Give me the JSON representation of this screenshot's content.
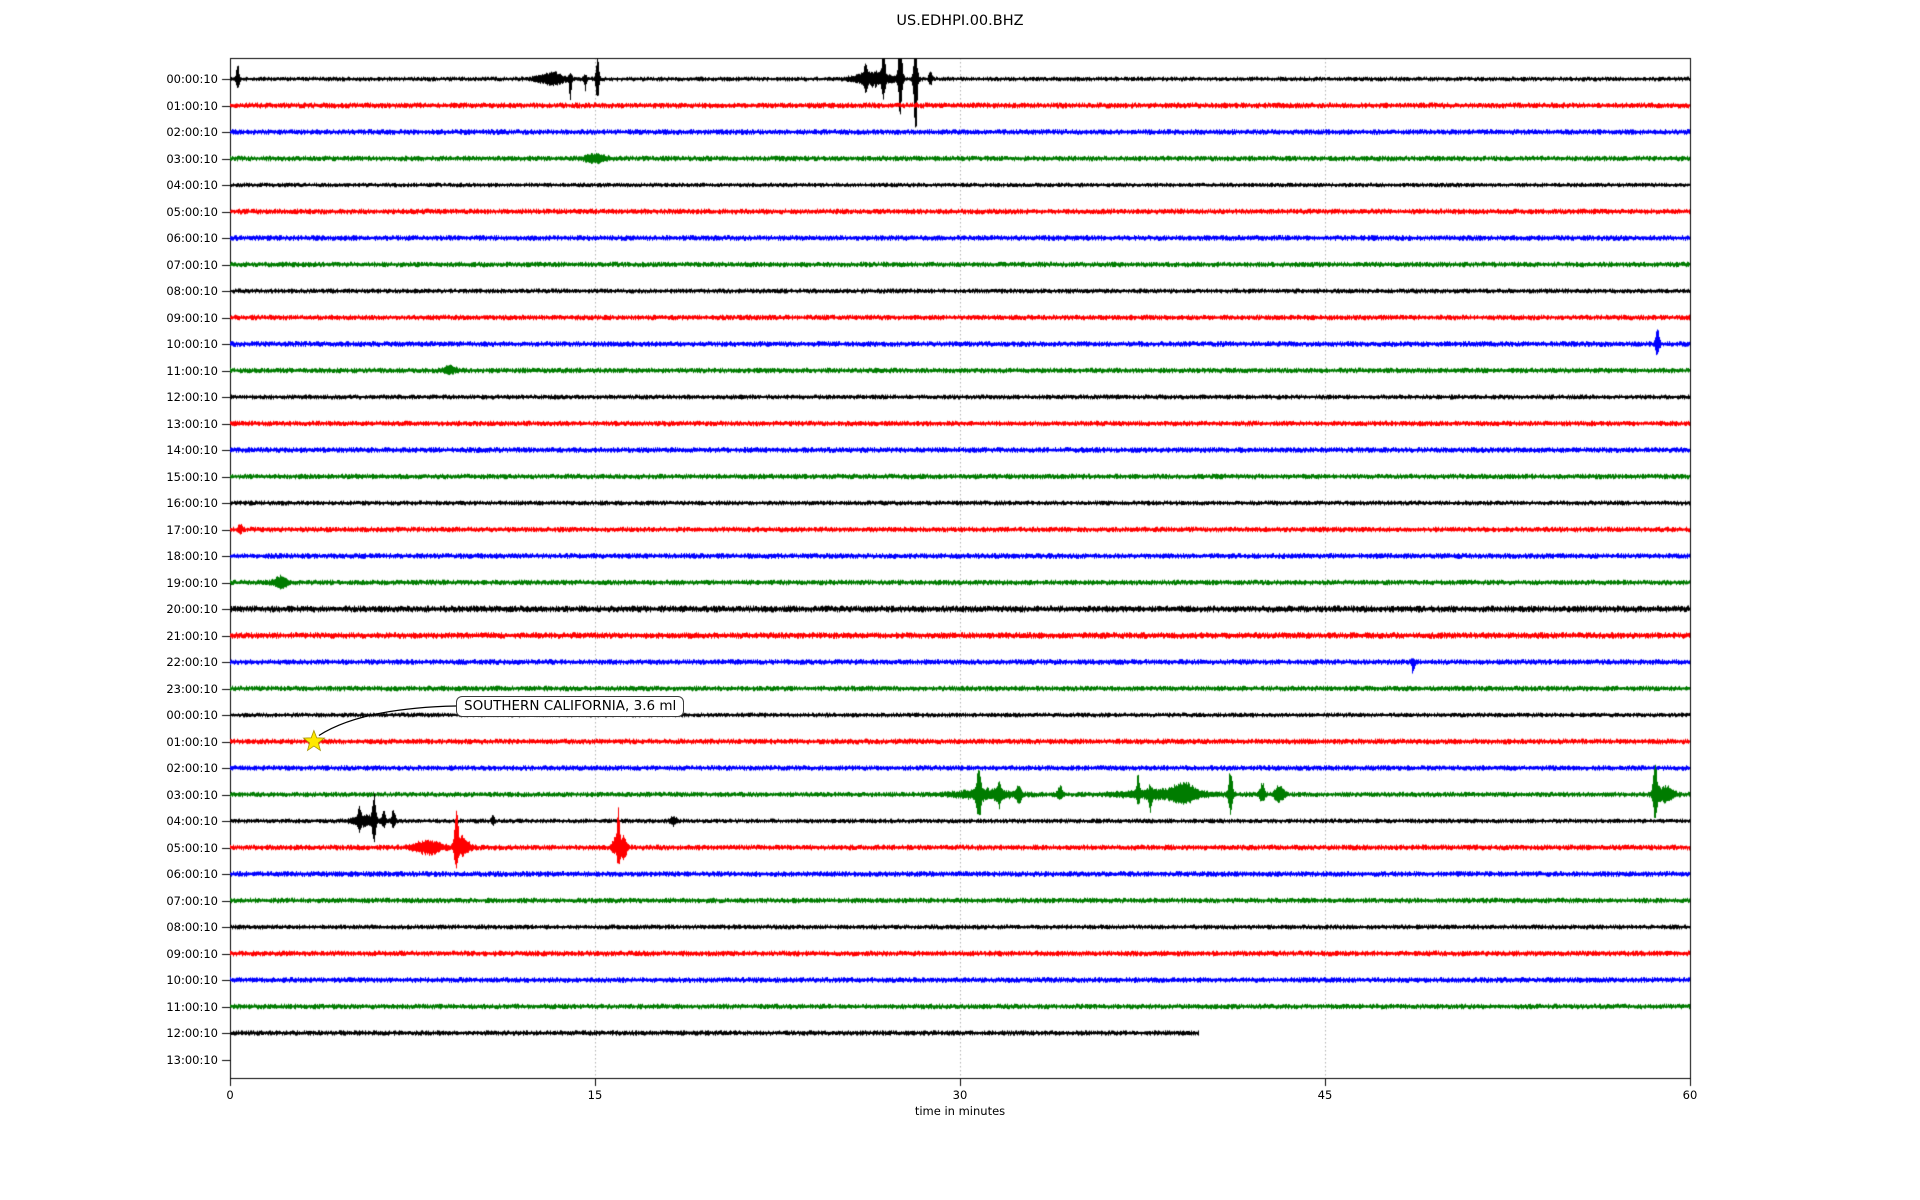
{
  "title": "US.EDHPI.00.BHZ",
  "axes": {
    "xlabel": "time in minutes",
    "x_tick_labels": [
      "0",
      "15",
      "30",
      "45",
      "60"
    ],
    "y_tick_labels_day1": [
      "00:00:10",
      "01:00:10",
      "02:00:10",
      "03:00:10",
      "04:00:10",
      "05:00:10",
      "06:00:10",
      "07:00:10",
      "08:00:10",
      "09:00:10",
      "10:00:10",
      "11:00:10",
      "12:00:10",
      "13:00:10",
      "14:00:10",
      "15:00:10",
      "16:00:10",
      "17:00:10",
      "18:00:10",
      "19:00:10",
      "20:00:10",
      "21:00:10",
      "22:00:10",
      "23:00:10"
    ],
    "y_tick_labels_day2": [
      "00:00:10",
      "01:00:10",
      "02:00:10",
      "03:00:10",
      "04:00:10",
      "05:00:10",
      "06:00:10",
      "07:00:10",
      "08:00:10",
      "09:00:10",
      "10:00:10",
      "11:00:10",
      "12:00:10",
      "13:00:10"
    ]
  },
  "annotation": {
    "text": "SOUTHERN CALIFORNIA, 3.6 ml",
    "region": "SOUTHERN CALIFORNIA",
    "magnitude": "3.6 ml",
    "row_index": 25,
    "row_label": "01:00:10",
    "minute": 3.45,
    "star_color": "#ffe900"
  },
  "colors": {
    "trace_cycle": [
      "#000000",
      "#ff0000",
      "#0000ff",
      "#007c00"
    ],
    "gridline": "#b0b0b0",
    "frame": "#000000",
    "annotation_border": "#3a3a3a",
    "star_fill": "#ffe900",
    "star_edge": "#a89400"
  },
  "chart_data": {
    "type": "line",
    "subtype": "helicorder-dayplot",
    "title": "US.EDHPI.00.BHZ",
    "station": "US.EDHPI.00.BHZ",
    "xlabel": "time in minutes",
    "xlim_minutes": [
      0,
      60
    ],
    "x_ticks_minutes": [
      0,
      15,
      30,
      45,
      60
    ],
    "minutes_per_row": 60,
    "gridlines_at_minutes": [
      15,
      30,
      45
    ],
    "color_cycle": [
      "#000000",
      "#ff0000",
      "#0000ff",
      "#007c00"
    ],
    "rows": [
      {
        "label": "00:00:10",
        "cover": 60,
        "base": 2.5,
        "events": [
          {
            "m": 0.3,
            "up": 16,
            "down": 12,
            "w": 0.05
          },
          {
            "m": 13.2,
            "up": 6,
            "down": 6,
            "w": 0.4
          },
          {
            "m": 13.97,
            "up": 5,
            "down": 20,
            "w": 0.04
          },
          {
            "m": 14.59,
            "up": 4,
            "down": 11,
            "w": 0.04
          },
          {
            "m": 15.08,
            "up": 26,
            "down": 26,
            "w": 0.05
          },
          {
            "m": 26.4,
            "up": 7,
            "down": 7,
            "w": 0.55
          },
          {
            "m": 26.1,
            "up": 13,
            "down": 9,
            "w": 0.05
          },
          {
            "m": 26.84,
            "up": 34,
            "down": 18,
            "w": 0.05
          },
          {
            "m": 27.53,
            "up": 50,
            "down": 40,
            "w": 0.06
          },
          {
            "m": 28.15,
            "up": 42,
            "down": 62,
            "w": 0.06
          },
          {
            "m": 28.77,
            "up": 9,
            "down": 7,
            "w": 0.05
          }
        ]
      },
      {
        "label": "01:00:10",
        "cover": 60,
        "base": 3.1,
        "events": []
      },
      {
        "label": "02:00:10",
        "cover": 60,
        "base": 3.0,
        "events": []
      },
      {
        "label": "03:00:10",
        "cover": 60,
        "base": 2.9,
        "events": [
          {
            "m": 15.0,
            "up": 4,
            "down": 4,
            "w": 0.3
          }
        ]
      },
      {
        "label": "04:00:10",
        "cover": 60,
        "base": 2.4,
        "events": []
      },
      {
        "label": "05:00:10",
        "cover": 60,
        "base": 3.0,
        "events": []
      },
      {
        "label": "06:00:10",
        "cover": 60,
        "base": 3.0,
        "events": []
      },
      {
        "label": "07:00:10",
        "cover": 60,
        "base": 2.9,
        "events": []
      },
      {
        "label": "08:00:10",
        "cover": 60,
        "base": 2.6,
        "events": []
      },
      {
        "label": "09:00:10",
        "cover": 60,
        "base": 2.9,
        "events": []
      },
      {
        "label": "10:00:10",
        "cover": 60,
        "base": 3.0,
        "events": [
          {
            "m": 58.64,
            "up": 19,
            "down": 14,
            "w": 0.06
          }
        ]
      },
      {
        "label": "11:00:10",
        "cover": 60,
        "base": 2.9,
        "events": [
          {
            "m": 9.0,
            "up": 4,
            "down": 3,
            "w": 0.2
          }
        ]
      },
      {
        "label": "12:00:10",
        "cover": 60,
        "base": 2.6,
        "events": []
      },
      {
        "label": "13:00:10",
        "cover": 60,
        "base": 2.9,
        "events": []
      },
      {
        "label": "14:00:10",
        "cover": 60,
        "base": 3.0,
        "events": []
      },
      {
        "label": "15:00:10",
        "cover": 60,
        "base": 2.9,
        "events": []
      },
      {
        "label": "16:00:10",
        "cover": 60,
        "base": 2.6,
        "events": []
      },
      {
        "label": "17:00:10",
        "cover": 60,
        "base": 2.9,
        "events": [
          {
            "m": 0.4,
            "up": 6,
            "down": 5,
            "w": 0.06
          }
        ]
      },
      {
        "label": "18:00:10",
        "cover": 60,
        "base": 3.0,
        "events": []
      },
      {
        "label": "19:00:10",
        "cover": 60,
        "base": 2.9,
        "events": [
          {
            "m": 2.05,
            "up": 6,
            "down": 5,
            "w": 0.2
          }
        ]
      },
      {
        "label": "20:00:10",
        "cover": 60,
        "base": 3.6,
        "events": []
      },
      {
        "label": "21:00:10",
        "cover": 60,
        "base": 3.4,
        "events": []
      },
      {
        "label": "22:00:10",
        "cover": 60,
        "base": 3.0,
        "events": [
          {
            "m": 48.6,
            "up": 3,
            "down": 11,
            "w": 0.05
          }
        ]
      },
      {
        "label": "23:00:10",
        "cover": 60,
        "base": 2.9,
        "events": []
      },
      {
        "label": "00:00:10",
        "cover": 60,
        "base": 2.5,
        "events": []
      },
      {
        "label": "01:00:10",
        "cover": 60,
        "base": 3.0,
        "events": []
      },
      {
        "label": "02:00:10",
        "cover": 60,
        "base": 2.9,
        "events": []
      },
      {
        "label": "03:00:10",
        "cover": 60,
        "base": 2.8,
        "events": [
          {
            "m": 31.0,
            "up": 5,
            "down": 5,
            "w": 0.8
          },
          {
            "m": 30.75,
            "up": 23,
            "down": 24,
            "w": 0.07
          },
          {
            "m": 31.6,
            "up": 12,
            "down": 10,
            "w": 0.06
          },
          {
            "m": 32.4,
            "up": 9,
            "down": 8,
            "w": 0.08
          },
          {
            "m": 34.1,
            "up": 8,
            "down": 6,
            "w": 0.08
          },
          {
            "m": 38.5,
            "up": 5,
            "down": 4,
            "w": 1.2
          },
          {
            "m": 37.3,
            "up": 19,
            "down": 8,
            "w": 0.05
          },
          {
            "m": 37.8,
            "up": 6,
            "down": 16,
            "w": 0.05
          },
          {
            "m": 39.2,
            "up": 9,
            "down": 7,
            "w": 0.3
          },
          {
            "m": 41.1,
            "up": 27,
            "down": 25,
            "w": 0.06
          },
          {
            "m": 42.4,
            "up": 12,
            "down": 9,
            "w": 0.08
          },
          {
            "m": 43.1,
            "up": 9,
            "down": 8,
            "w": 0.15
          },
          {
            "m": 58.55,
            "up": 30,
            "down": 27,
            "w": 0.07
          },
          {
            "m": 58.95,
            "up": 8,
            "down": 8,
            "w": 0.25
          }
        ]
      },
      {
        "label": "04:00:10",
        "cover": 60,
        "base": 2.5,
        "events": [
          {
            "m": 5.5,
            "up": 6,
            "down": 5,
            "w": 0.35
          },
          {
            "m": 5.3,
            "up": 10,
            "down": 8,
            "w": 0.05
          },
          {
            "m": 5.9,
            "up": 26,
            "down": 19,
            "w": 0.06
          },
          {
            "m": 6.3,
            "up": 9,
            "down": 7,
            "w": 0.06
          },
          {
            "m": 6.7,
            "up": 11,
            "down": 6,
            "w": 0.06
          },
          {
            "m": 10.8,
            "up": 5,
            "down": 4,
            "w": 0.05
          },
          {
            "m": 18.2,
            "up": 4,
            "down": 4,
            "w": 0.1
          }
        ]
      },
      {
        "label": "05:00:10",
        "cover": 60,
        "base": 3.0,
        "events": [
          {
            "m": 8.1,
            "up": 7,
            "down": 6,
            "w": 0.4
          },
          {
            "m": 9.28,
            "up": 42,
            "down": 23,
            "w": 0.06
          },
          {
            "m": 9.55,
            "up": 10,
            "down": 8,
            "w": 0.2
          },
          {
            "m": 15.8,
            "up": 8,
            "down": 6,
            "w": 0.1
          },
          {
            "m": 15.95,
            "up": 37,
            "down": 18,
            "w": 0.05
          },
          {
            "m": 16.15,
            "up": 10,
            "down": 12,
            "w": 0.1
          }
        ]
      },
      {
        "label": "06:00:10",
        "cover": 60,
        "base": 3.0,
        "events": []
      },
      {
        "label": "07:00:10",
        "cover": 60,
        "base": 2.9,
        "events": []
      },
      {
        "label": "08:00:10",
        "cover": 60,
        "base": 2.6,
        "events": []
      },
      {
        "label": "09:00:10",
        "cover": 60,
        "base": 3.0,
        "events": []
      },
      {
        "label": "10:00:10",
        "cover": 60,
        "base": 3.0,
        "events": []
      },
      {
        "label": "11:00:10",
        "cover": 60,
        "base": 2.9,
        "events": []
      },
      {
        "label": "12:00:10",
        "cover": 39.8,
        "base": 2.8,
        "events": []
      },
      {
        "label": "13:00:10",
        "cover": 0,
        "base": 0,
        "events": []
      }
    ],
    "annotated_event": {
      "text": "SOUTHERN CALIFORNIA, 3.6 ml",
      "row_index": 25,
      "row_label": "01:00:10",
      "minute": 3.45
    }
  }
}
